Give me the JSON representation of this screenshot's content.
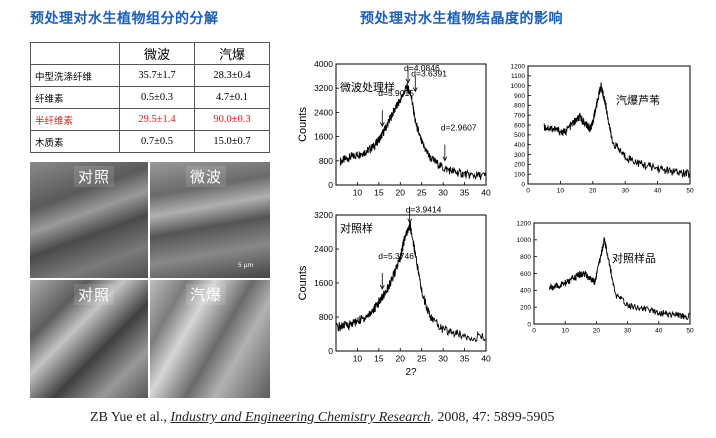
{
  "titles": {
    "left": "预处理对水生植物组分的分解",
    "right": "预处理对水生植物结晶度的影响"
  },
  "table": {
    "headers": [
      "",
      "微波",
      "汽爆"
    ],
    "rows": [
      {
        "label": "中型洗涤纤维",
        "microwave": "35.7±1.7",
        "steam": "28.3±0.4",
        "highlight": false
      },
      {
        "label": "纤维素",
        "microwave": "0.5±0.3",
        "steam": "4.7±0.1",
        "highlight": false
      },
      {
        "label": "半纤维素",
        "microwave": "29.5±1.4",
        "steam": "90.0±0.3",
        "highlight": true
      },
      {
        "label": "木质素",
        "microwave": "0.7±0.5",
        "steam": "15.0±0.7",
        "highlight": false
      }
    ],
    "highlight_color": "#e21b1b"
  },
  "sem_images": {
    "top_left_label": "对照",
    "top_right_label": "微波",
    "bottom_left_label": "对照",
    "bottom_right_label": "汽爆",
    "scale_text": "5 μm"
  },
  "chart_data": [
    {
      "type": "line",
      "panel": "top-left",
      "label": "微波处理样",
      "xlim": [
        5,
        40
      ],
      "ylim": [
        0,
        4000
      ],
      "xticks": [
        "10",
        "15",
        "20",
        "25",
        "30",
        "35",
        "40"
      ],
      "yticks": [
        "0",
        "800",
        "1600",
        "2400",
        "3200",
        "4000"
      ],
      "ylabel": "Counts",
      "annotations": [
        "d=5.9015",
        "d=4.0846",
        "d=3.6391",
        "d=2.9607"
      ],
      "series": [
        {
          "x": [
            6,
            8,
            10,
            12,
            14,
            15.5,
            17,
            18.5,
            20,
            21.5,
            22.5,
            23.5,
            25,
            27,
            30,
            33,
            36,
            40
          ],
          "y": [
            780,
            900,
            1000,
            1100,
            1300,
            1600,
            2000,
            2450,
            2800,
            3250,
            3000,
            2100,
            1400,
            900,
            560,
            420,
            330,
            300
          ]
        }
      ]
    },
    {
      "type": "line",
      "panel": "top-right",
      "label": "汽爆芦苇",
      "xlim": [
        0,
        50
      ],
      "ylim": [
        0,
        1200
      ],
      "xticks": [
        "0",
        "10",
        "20",
        "30",
        "40",
        "50"
      ],
      "yticks": [
        "0",
        "100",
        "200",
        "300",
        "400",
        "500",
        "600",
        "700",
        "800",
        "900",
        "1000",
        "1100",
        "1200"
      ],
      "series": [
        {
          "x": [
            5,
            8,
            11,
            14,
            16,
            18,
            19.5,
            21,
            22.5,
            24,
            26,
            30,
            35,
            40,
            45,
            50
          ],
          "y": [
            580,
            560,
            520,
            620,
            680,
            600,
            560,
            780,
            1000,
            800,
            430,
            280,
            200,
            160,
            120,
            100
          ]
        }
      ]
    },
    {
      "type": "line",
      "panel": "bottom-left",
      "label": "对照样",
      "xlabel": "2?",
      "xlim": [
        5,
        40
      ],
      "ylim": [
        0,
        3200
      ],
      "xticks": [
        "10",
        "15",
        "20",
        "25",
        "30",
        "35",
        "40"
      ],
      "yticks": [
        "0",
        "800",
        "1600",
        "2400",
        "3200"
      ],
      "ylabel": "Counts",
      "annotations": [
        "d=5.3746",
        "d=3.9414"
      ],
      "series": [
        {
          "x": [
            5,
            8,
            10,
            12,
            14,
            16,
            18,
            20,
            21,
            22.3,
            23.5,
            25,
            27,
            30,
            34,
            40
          ],
          "y": [
            550,
            620,
            700,
            800,
            1000,
            1300,
            1650,
            2200,
            2650,
            2950,
            2300,
            1400,
            800,
            500,
            380,
            300
          ]
        }
      ]
    },
    {
      "type": "line",
      "panel": "bottom-right",
      "label": "对照样品",
      "xlim": [
        0,
        50
      ],
      "ylim": [
        0,
        1200
      ],
      "xticks": [
        "0",
        "10",
        "20",
        "30",
        "40",
        "50"
      ],
      "yticks": [
        "0",
        "200",
        "400",
        "600",
        "800",
        "1000",
        "1200"
      ],
      "series": [
        {
          "x": [
            5,
            8,
            11,
            14,
            16,
            18,
            19.5,
            21,
            22.5,
            24,
            26,
            30,
            35,
            40,
            45,
            50
          ],
          "y": [
            430,
            450,
            500,
            580,
            600,
            540,
            500,
            740,
            1000,
            760,
            350,
            230,
            180,
            140,
            110,
            90
          ]
        }
      ]
    }
  ],
  "citation": {
    "authors": "ZB Yue et al., ",
    "journal": "Industry and Engineering Chemistry Research",
    "rest": ". 2008, 47: 5899-5905"
  }
}
